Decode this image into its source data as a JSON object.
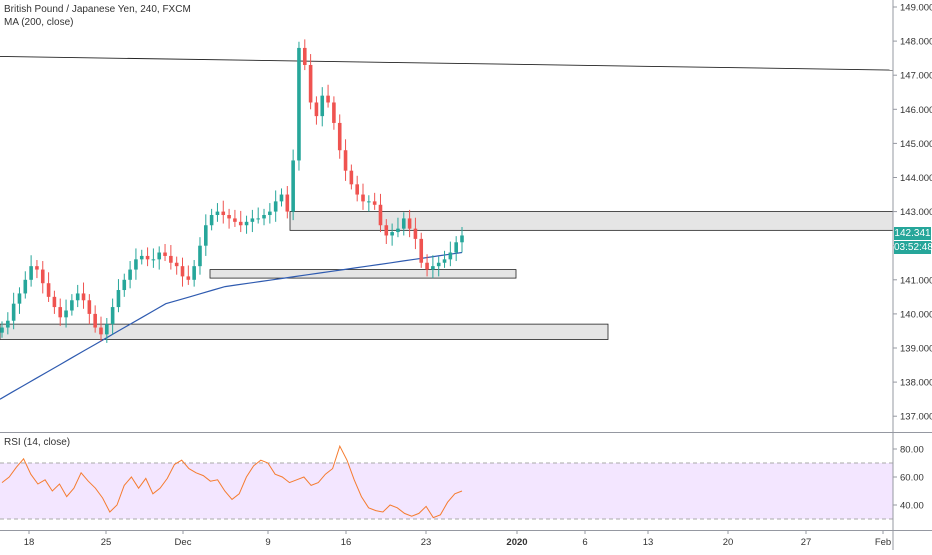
{
  "chart_data": {
    "type": "candlestick",
    "symbol_title": "British Pound / Japanese Yen, 240, FXCM",
    "indicator_label": "MA (200, close)",
    "rsi_label": "RSI (14, close)",
    "price_axis": {
      "min": 136.5,
      "max": 149.2,
      "ticks": [
        "149.000",
        "148.000",
        "147.000",
        "146.000",
        "145.000",
        "144.000",
        "143.000",
        "142.000",
        "141.000",
        "140.000",
        "139.000",
        "138.000",
        "137.000"
      ]
    },
    "rsi_axis": {
      "ticks": [
        "80.00",
        "60.00",
        "40.00"
      ],
      "overbought": 70,
      "oversold": 30
    },
    "x_ticks": [
      "18",
      "25",
      "Dec",
      "9",
      "16",
      "23",
      "2020",
      "6",
      "13",
      "20",
      "27",
      "Feb"
    ],
    "last_price": "142.341",
    "countdown": "03:52:48",
    "price_series": [
      139.6,
      139.8,
      140.3,
      140.6,
      141.0,
      141.4,
      141.3,
      140.9,
      140.5,
      140.2,
      139.9,
      140.1,
      140.4,
      140.6,
      140.4,
      140.0,
      139.6,
      139.4,
      139.7,
      140.2,
      140.7,
      141.0,
      141.3,
      141.6,
      141.7,
      141.6,
      141.6,
      141.8,
      141.7,
      141.5,
      141.4,
      141.1,
      141.0,
      141.4,
      142.0,
      142.6,
      142.9,
      143.0,
      142.9,
      142.8,
      142.7,
      142.6,
      142.7,
      142.8,
      142.8,
      142.9,
      143.0,
      143.3,
      143.5,
      143.0,
      144.5,
      147.8,
      147.3,
      146.2,
      145.8,
      146.4,
      146.2,
      145.6,
      144.8,
      144.2,
      143.8,
      143.5,
      143.3,
      143.3,
      143.2,
      142.6,
      142.3,
      142.4,
      142.5,
      142.8,
      142.5,
      142.2,
      141.5,
      141.3,
      141.4,
      141.5,
      141.6,
      141.8,
      142.1,
      142.3
    ],
    "ma_200": [
      137.5,
      137.7,
      137.9,
      138.1,
      138.3,
      138.5,
      138.7,
      138.9,
      139.1,
      139.3,
      139.5,
      139.7,
      139.9,
      140.1,
      140.3,
      140.4,
      140.5,
      140.6,
      140.7,
      140.8,
      140.85,
      140.9,
      140.95,
      141.0,
      141.05,
      141.1,
      141.15,
      141.2,
      141.25,
      141.3,
      141.35,
      141.4,
      141.45,
      141.5,
      141.55,
      141.6,
      141.65,
      141.7,
      141.75,
      141.8
    ],
    "rsi_series": [
      56,
      60,
      67,
      73,
      62,
      55,
      58,
      50,
      55,
      46,
      52,
      63,
      57,
      52,
      45,
      35,
      40,
      54,
      60,
      52,
      59,
      48,
      52,
      59,
      69,
      72,
      66,
      63,
      61,
      57,
      58,
      50,
      44,
      48,
      60,
      68,
      72,
      70,
      62,
      60,
      56,
      58,
      60,
      54,
      56,
      62,
      66,
      82,
      72,
      58,
      46,
      38,
      36,
      35,
      40,
      38,
      34,
      32,
      34,
      39,
      31,
      33,
      42,
      48,
      50
    ],
    "trendline": {
      "start_price": 147.55,
      "end_price": 147.15
    },
    "zones": [
      {
        "top": 143.0,
        "bottom": 142.45
      },
      {
        "top": 141.3,
        "bottom": 141.05
      },
      {
        "top": 139.7,
        "bottom": 139.25
      }
    ]
  }
}
